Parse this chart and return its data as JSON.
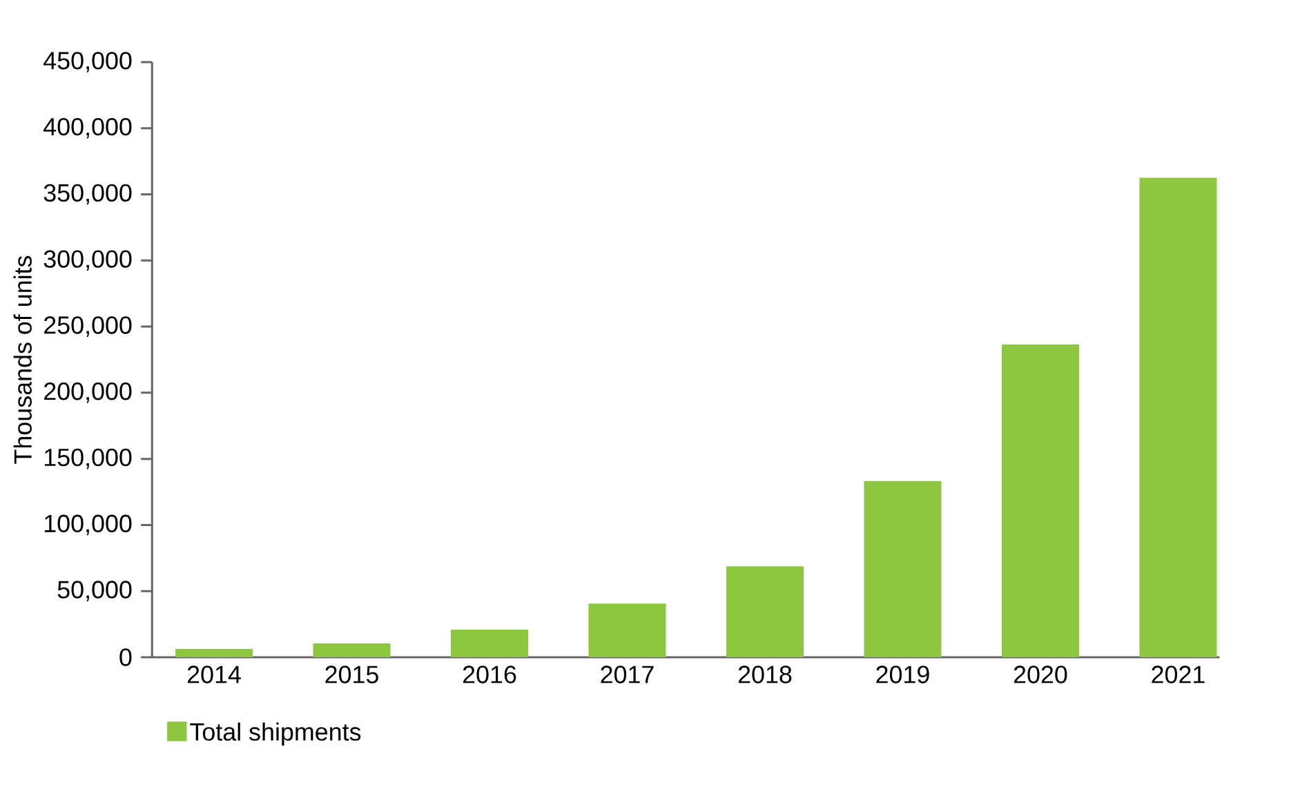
{
  "chart_data": {
    "type": "bar",
    "ylabel": "Thousands of units",
    "categories": [
      "2014",
      "2015",
      "2016",
      "2017",
      "2018",
      "2019",
      "2020",
      "2021"
    ],
    "series": [
      {
        "name": "Total shipments",
        "color": "#8dc63f",
        "values": [
          6250,
          10400,
          20800,
          40600,
          68800,
          133300,
          236500,
          362500
        ]
      }
    ],
    "ylim": [
      0,
      450000
    ],
    "yticks": [
      0,
      {
        "value": 50000,
        "label": "50,000"
      },
      {
        "value": 100000,
        "label": "100,000"
      },
      {
        "value": 150000,
        "label": "150,000"
      },
      {
        "value": 200000,
        "label": "200,000"
      },
      {
        "value": 250000,
        "label": "250,000"
      },
      {
        "value": 300000,
        "label": "300,000"
      },
      {
        "value": 350000,
        "label": "350,000"
      },
      {
        "value": 400000,
        "label": "400,000"
      },
      {
        "value": 450000,
        "label": "450,000"
      }
    ],
    "grid": false,
    "legend": "bottom left"
  }
}
